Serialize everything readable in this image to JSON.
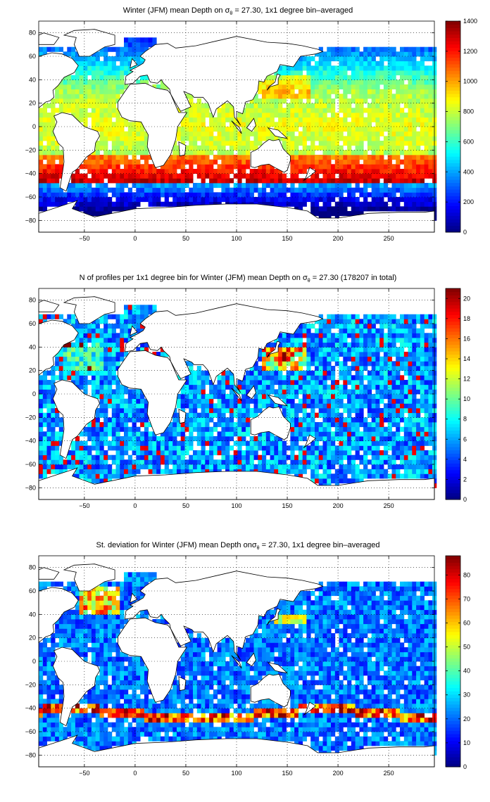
{
  "chart_data": [
    {
      "type": "heatmap",
      "title_prefix": "Winter (JFM) mean Depth on ",
      "sigma_symbol": "σ",
      "sigma_sub": "θ",
      "title_suffix": " = 27.30, 1x1 degree bin–averaged",
      "xlim": [
        -95,
        295
      ],
      "ylim": [
        -90,
        90
      ],
      "x_ticks": [
        -50,
        0,
        50,
        100,
        150,
        200,
        250
      ],
      "x_tick_labels": [
        "−50",
        "0",
        "50",
        "100",
        "150",
        "200",
        "250"
      ],
      "y_ticks": [
        80,
        60,
        40,
        20,
        0,
        -20,
        -40,
        -60,
        -80
      ],
      "y_tick_labels": [
        "80",
        "60",
        "40",
        "20",
        "0",
        "−20",
        "−40",
        "−60",
        "−80"
      ],
      "grid": true,
      "colorbar": {
        "min": 0,
        "max": 1400,
        "ticks": [
          0,
          200,
          400,
          600,
          800,
          1000,
          1200,
          1400
        ],
        "tick_labels": [
          "0",
          "200",
          "400",
          "600",
          "800",
          "1000",
          "1200",
          "1400"
        ]
      },
      "field": "depth"
    },
    {
      "type": "heatmap",
      "title_prefix": "N of profiles per 1x1 degree bin for Winter (JFM) mean Depth on ",
      "sigma_symbol": "σ",
      "sigma_sub": "θ",
      "title_suffix": " = 27.30 (178207 in total)",
      "xlim": [
        -95,
        295
      ],
      "ylim": [
        -90,
        90
      ],
      "x_ticks": [
        -50,
        0,
        50,
        100,
        150,
        200,
        250
      ],
      "x_tick_labels": [
        "−50",
        "0",
        "50",
        "100",
        "150",
        "200",
        "250"
      ],
      "y_ticks": [
        80,
        60,
        40,
        20,
        0,
        -20,
        -40,
        -60,
        -80
      ],
      "y_tick_labels": [
        "80",
        "60",
        "40",
        "20",
        "0",
        "−20",
        "−40",
        "−60",
        "−80"
      ],
      "grid": true,
      "colorbar": {
        "min": 0,
        "max": 21,
        "ticks": [
          0,
          2,
          4,
          6,
          8,
          10,
          12,
          14,
          16,
          18,
          20
        ],
        "tick_labels": [
          "0",
          "2",
          "4",
          "6",
          "8",
          "10",
          "12",
          "14",
          "16",
          "18",
          "20"
        ]
      },
      "field": "count"
    },
    {
      "type": "heatmap",
      "title_prefix": "St. deviation for Winter (JFM) mean Depth on",
      "sigma_symbol": "σ",
      "sigma_sub": "θ",
      "title_suffix": " = 27.30, 1x1 degree bin–averaged",
      "xlim": [
        -95,
        295
      ],
      "ylim": [
        -90,
        90
      ],
      "x_ticks": [
        -50,
        0,
        50,
        100,
        150,
        200,
        250
      ],
      "x_tick_labels": [
        "−50",
        "0",
        "50",
        "100",
        "150",
        "200",
        "250"
      ],
      "y_ticks": [
        80,
        60,
        40,
        20,
        0,
        -20,
        -40,
        -60,
        -80
      ],
      "y_tick_labels": [
        "80",
        "60",
        "40",
        "20",
        "0",
        "−20",
        "−40",
        "−60",
        "−80"
      ],
      "grid": true,
      "colorbar": {
        "min": 0,
        "max": 88,
        "ticks": [
          0,
          10,
          20,
          30,
          40,
          50,
          60,
          70,
          80
        ],
        "tick_labels": [
          "0",
          "10",
          "20",
          "30",
          "40",
          "50",
          "60",
          "70",
          "80"
        ]
      },
      "field": "stddev"
    }
  ]
}
